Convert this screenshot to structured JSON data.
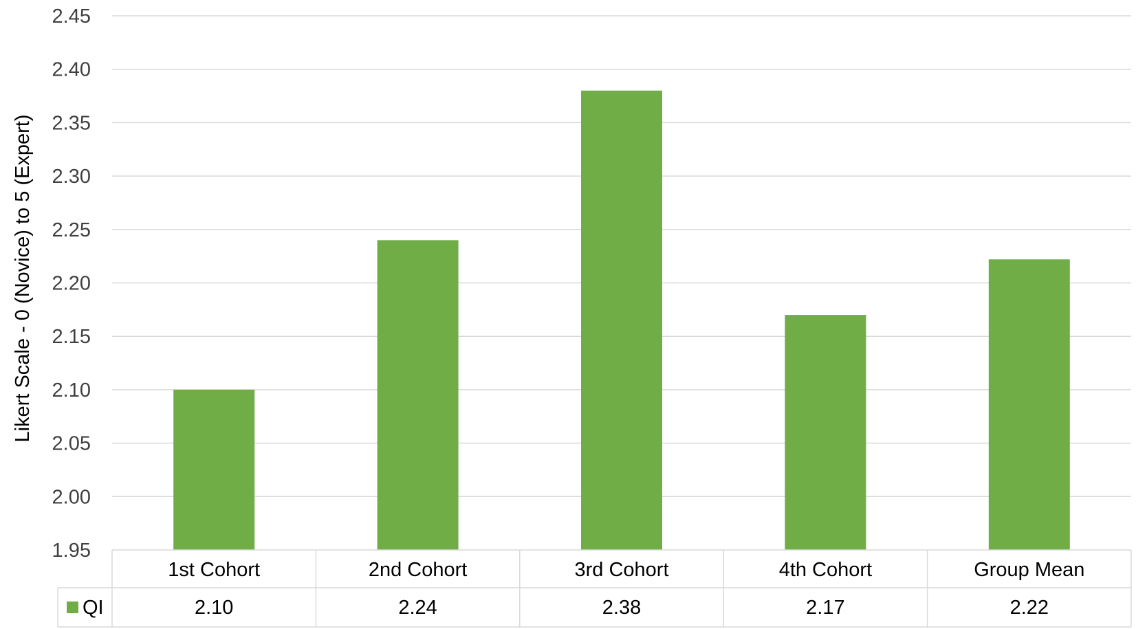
{
  "chart_data": {
    "type": "bar",
    "title": "",
    "xlabel": "",
    "ylabel": "Likert Scale - 0 (Novice) to 5 (Expert)",
    "ylim": [
      1.95,
      2.45
    ],
    "ytick_step": 0.05,
    "yticks": [
      "1.95",
      "2.00",
      "2.05",
      "2.10",
      "2.15",
      "2.20",
      "2.25",
      "2.30",
      "2.35",
      "2.40",
      "2.45"
    ],
    "grid": true,
    "categories": [
      "1st Cohort",
      "2nd Cohort",
      "3rd Cohort",
      "4th Cohort",
      "Group Mean"
    ],
    "series": [
      {
        "name": "QI",
        "values": [
          2.1,
          2.24,
          2.38,
          2.17,
          2.222
        ],
        "color": "#70ad47"
      }
    ],
    "data_table": {
      "row_label": "QI",
      "values": [
        "2.10",
        "2.24",
        "2.38",
        "2.17",
        "2.22"
      ]
    }
  },
  "colors": {
    "bar": "#70ad47",
    "grid": "#d9d9d9",
    "table_border": "#d9d9d9"
  }
}
